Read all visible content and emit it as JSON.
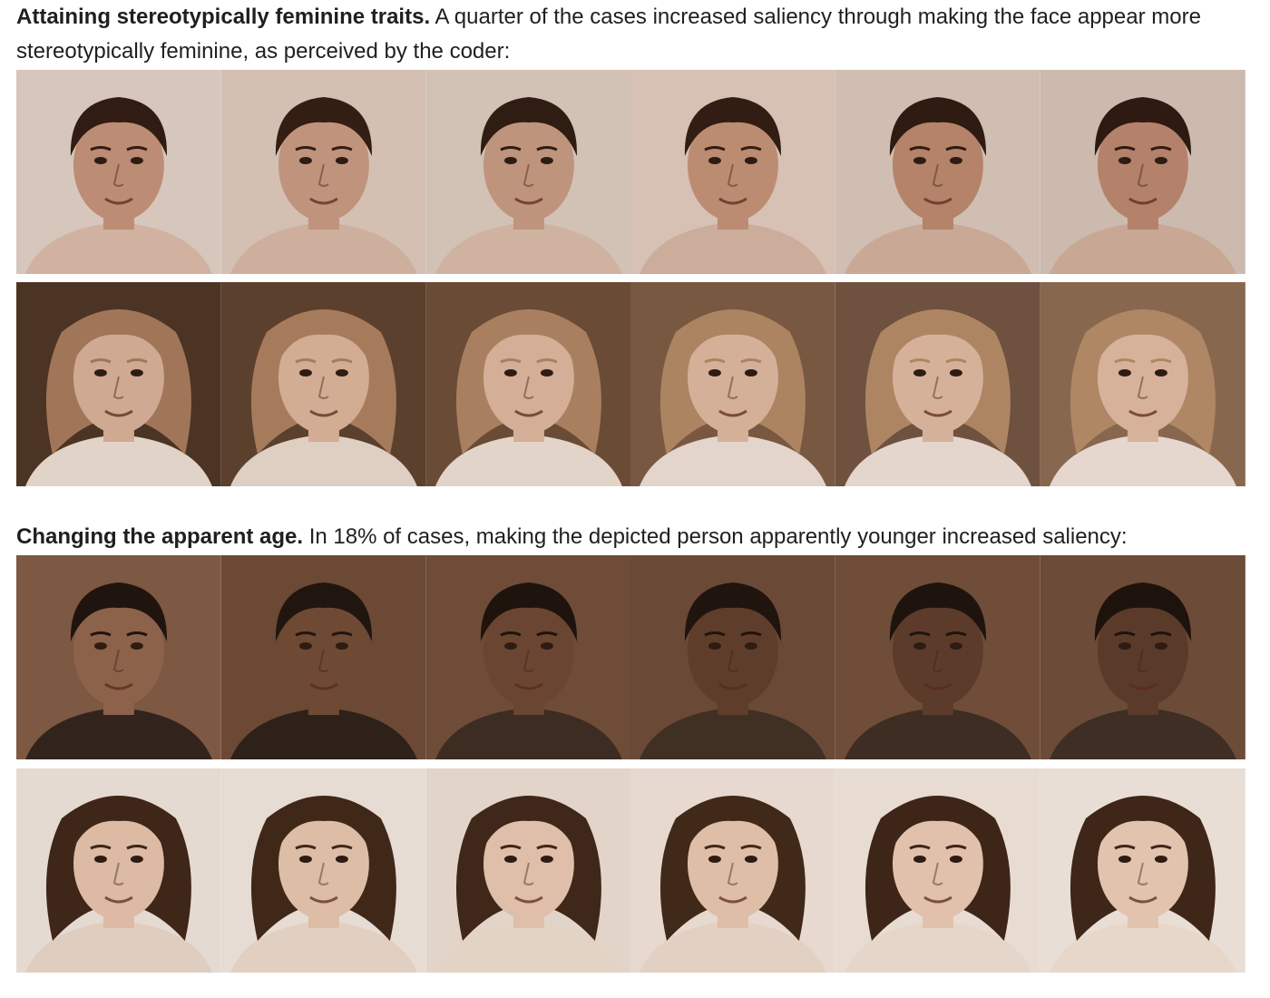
{
  "sections": [
    {
      "lead": "Attaining stereotypically feminine traits.",
      "text": " A quarter of the cases increased saliency through making the face appear more stereotypically feminine, as perceived by the coder:"
    },
    {
      "lead": "Changing the apparent age.",
      "text": " In 18% of cases, making the depicted person apparently younger increased saliency:"
    }
  ],
  "strips": [
    {
      "subject": "man-short-dark-hair",
      "frames": 6,
      "bg": [
        "#dccfc6",
        "#d9c8bd",
        "#d8c9bf",
        "#dcc9be",
        "#d6c6bb",
        "#d2c2b8"
      ],
      "skin": [
        "#c1917a",
        "#c59882",
        "#c49a83",
        "#c19178",
        "#b8876e",
        "#b88670"
      ],
      "hair": [
        "#2c1a12",
        "#2e1c13",
        "#2b1a12",
        "#2d1b13",
        "#2a1911",
        "#2a1811"
      ],
      "clothes": [
        "#d7b9a9",
        "#d4b6a5",
        "#d6b9a8",
        "#d2b3a2",
        "#cfb09e",
        "#ceaf9c"
      ],
      "long_hair": [
        false,
        false,
        false,
        false,
        false,
        false
      ]
    },
    {
      "subject": "woman-curly-light-hair",
      "frames": 6,
      "bg": [
        "#4a3426",
        "#5a402f",
        "#6a4c38",
        "#7a5a44",
        "#6e5240",
        "#8a6a52"
      ],
      "skin": [
        "#d6b09a",
        "#d9b39c",
        "#dab59f",
        "#dbb7a1",
        "#dcb8a2",
        "#ddb9a3"
      ],
      "hair": [
        "#a47a5c",
        "#a97f60",
        "#ad8463",
        "#b08866",
        "#b28a68",
        "#b48c6a"
      ],
      "clothes": [
        "#e8dcd2",
        "#e6d8cd",
        "#e9ddd3",
        "#eadfd6",
        "#ebe0d7",
        "#ece1d8"
      ],
      "long_hair": [
        true,
        true,
        true,
        true,
        true,
        true
      ]
    },
    {
      "subject": "man-dark-skin",
      "frames": 6,
      "bg": [
        "#7e5a44",
        "#6b4a37",
        "#6e4d3a",
        "#6a4a38",
        "#6f4e3b",
        "#6c4c3a"
      ],
      "skin": [
        "#8e644d",
        "#6e4a36",
        "#6a4633",
        "#5e3d2c",
        "#5b3b2b",
        "#593a2a"
      ],
      "hair": [
        "#1b120d",
        "#1c130e",
        "#1a110c",
        "#1b120d",
        "#1a110c",
        "#19100b"
      ],
      "clothes": [
        "#2e221c",
        "#2a1f19",
        "#3a2b22",
        "#3d2e24",
        "#3a2c23",
        "#3b2d24"
      ],
      "long_hair": [
        false,
        false,
        false,
        false,
        false,
        false
      ]
    },
    {
      "subject": "girl-long-dark-hair",
      "frames": 6,
      "bg": [
        "#ece4de",
        "#eee6e0",
        "#e9ddd4",
        "#efe3da",
        "#f0e6de",
        "#f1e8e1"
      ],
      "skin": [
        "#e3c2ad",
        "#e5c5b0",
        "#e6c7b2",
        "#e6c6b1",
        "#e8c9b4",
        "#e9cbb6"
      ],
      "hair": [
        "#3b2518",
        "#3d2719",
        "#3c2619",
        "#3e281a",
        "#3a2418",
        "#3b2519"
      ],
      "clothes": [
        "#e6d6ca",
        "#e8d9cd",
        "#eadccf",
        "#e9dacd",
        "#ede0d5",
        "#eee1d6"
      ],
      "long_hair": [
        true,
        true,
        true,
        true,
        true,
        true
      ]
    }
  ]
}
